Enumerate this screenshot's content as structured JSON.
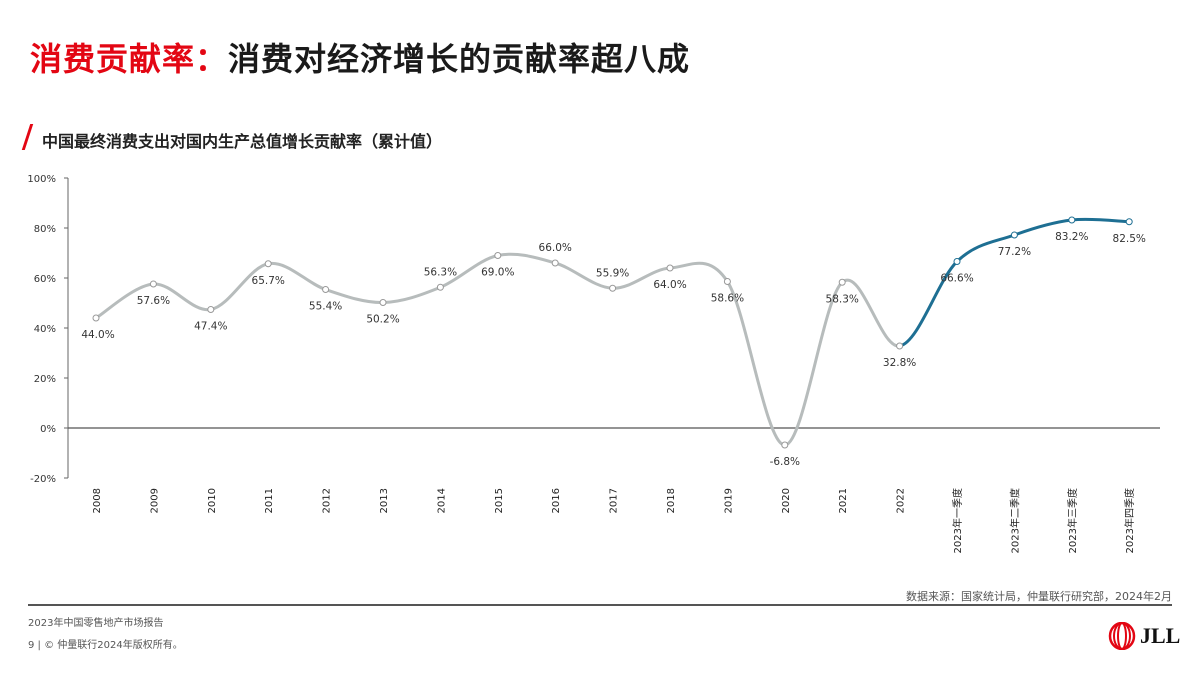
{
  "title": {
    "red": "消费贡献率：",
    "black": "消费对经济增长的贡献率超八成"
  },
  "chart_data": {
    "type": "line",
    "title": "中国最终消费支出对国内生产总值增长贡献率（累计值）",
    "categories": [
      "2008",
      "2009",
      "2010",
      "2011",
      "2012",
      "2013",
      "2014",
      "2015",
      "2016",
      "2017",
      "2018",
      "2019",
      "2020",
      "2021",
      "2022",
      "2023年一季度",
      "2023年二季度",
      "2023年三季度",
      "2023年四季度"
    ],
    "values": [
      44.0,
      57.6,
      47.4,
      65.7,
      55.4,
      50.2,
      56.3,
      69.0,
      66.0,
      55.9,
      64.0,
      58.6,
      -6.8,
      58.3,
      32.8,
      66.6,
      77.2,
      83.2,
      82.5
    ],
    "labels": [
      "44.0%",
      "57.6%",
      "47.4%",
      "65.7%",
      "55.4%",
      "50.2%",
      "56.3%",
      "69.0%",
      "66.0%",
      "55.9%",
      "64.0%",
      "58.6%",
      "-6.8%",
      "58.3%",
      "32.8%",
      "66.6%",
      "77.2%",
      "83.2%",
      "82.5%"
    ],
    "yticks": [
      "100%",
      "80%",
      "60%",
      "40%",
      "20%",
      "0%",
      "-20%"
    ],
    "ylim": [
      -20,
      100
    ],
    "colors": {
      "annual": "#b7bcbc",
      "quarterly": "#1e6f93"
    }
  },
  "source": "数据来源：国家统计局，仲量联行研究部，2024年2月",
  "footer": {
    "report": "2023年中国零售地产市场报告",
    "copyright": "9 | © 仲量联行2024年版权所有。"
  },
  "logo": {
    "text": "JLL"
  }
}
